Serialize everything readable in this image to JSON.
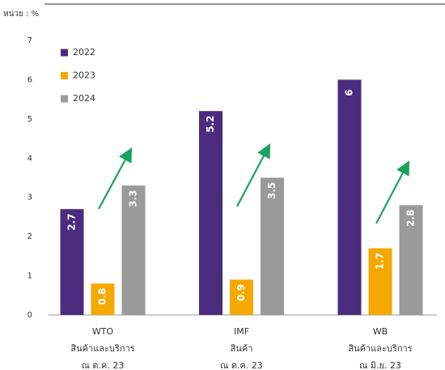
{
  "chart_data": {
    "type": "bar",
    "unit_label": "หน่วย : %",
    "categories": [
      [
        "WTO",
        "สินค้าและบริการ",
        "ณ ต.ค. 23"
      ],
      [
        "IMF",
        "สินค้า",
        "ณ ต.ค. 23"
      ],
      [
        "WB",
        "สินค้าและบริการ",
        "ณ มิ.ย. 23"
      ]
    ],
    "series": [
      {
        "name": "2022",
        "color": "#4b2c7f",
        "values": [
          2.7,
          5.2,
          6
        ]
      },
      {
        "name": "2023",
        "color": "#f5a800",
        "values": [
          0.8,
          0.9,
          1.7
        ]
      },
      {
        "name": "2024",
        "color": "#9a9a9a",
        "values": [
          3.3,
          3.5,
          2.8
        ]
      }
    ],
    "ylim": [
      0,
      7
    ],
    "yticks": [
      0,
      1,
      2,
      3,
      4,
      5,
      6,
      7
    ],
    "grid": false,
    "legend": "upper left"
  }
}
